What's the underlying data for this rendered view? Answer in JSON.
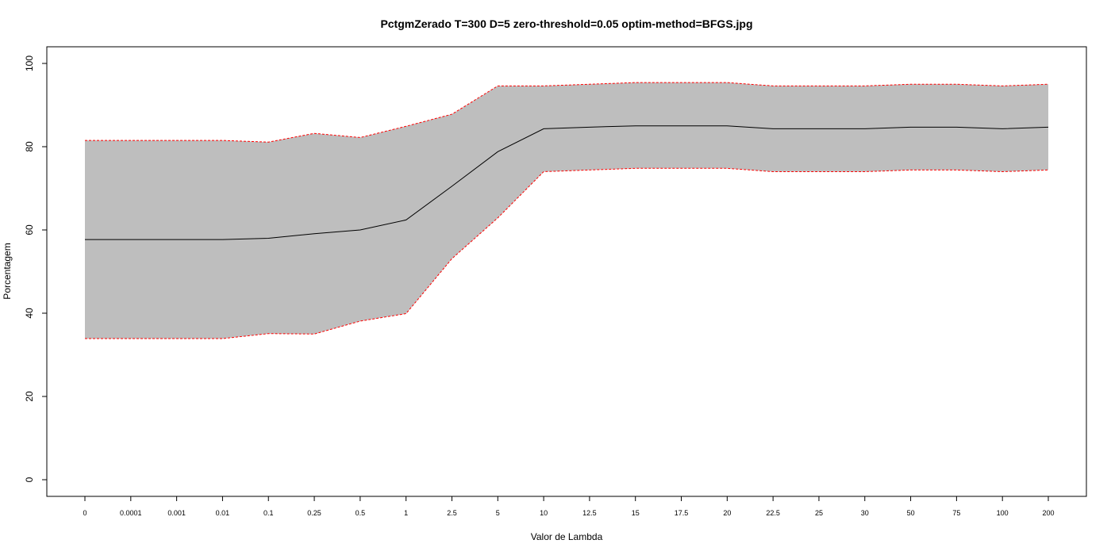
{
  "chart_data": {
    "type": "area",
    "title": "PctgmZerado T=300 D=5 zero-threshold=0.05 optim-method=BFGS.jpg",
    "xlabel": "Valor de Lambda",
    "ylabel": "Porcentagem",
    "categories": [
      "0",
      "0.0001",
      "0.001",
      "0.01",
      "0.1",
      "0.25",
      "0.5",
      "1",
      "2.5",
      "5",
      "10",
      "12.5",
      "15",
      "17.5",
      "20",
      "22.5",
      "25",
      "30",
      "50",
      "75",
      "100",
      "200"
    ],
    "yticks": [
      0,
      20,
      40,
      60,
      80,
      100
    ],
    "ylim": [
      0,
      100
    ],
    "grid": false,
    "series": [
      {
        "values": [
          81.5,
          81.5,
          81.5,
          81.5,
          81.1,
          83.2,
          82.2,
          84.9,
          87.8,
          94.6,
          94.6,
          95.0,
          95.4,
          95.4,
          95.4,
          94.6,
          94.6,
          94.6,
          95.0,
          95.0,
          94.6,
          95.0
        ]
      },
      {
        "values": [
          57.7,
          57.7,
          57.7,
          57.7,
          58.0,
          59.1,
          60.0,
          62.4,
          70.5,
          78.8,
          84.3,
          84.7,
          85.0,
          85.0,
          85.0,
          84.3,
          84.3,
          84.3,
          84.7,
          84.7,
          84.3,
          84.7
        ]
      },
      {
        "values": [
          33.9,
          33.9,
          33.9,
          33.9,
          35.1,
          35.0,
          38.1,
          39.9,
          53.1,
          62.9,
          74.0,
          74.4,
          74.8,
          74.8,
          74.8,
          74.0,
          74.0,
          74.0,
          74.4,
          74.4,
          74.0,
          74.4
        ]
      }
    ],
    "colors": {
      "band_fill": "#bebebe",
      "bound_lines": "#ff0000",
      "mean_line": "#000000",
      "frame": "#000000"
    }
  }
}
